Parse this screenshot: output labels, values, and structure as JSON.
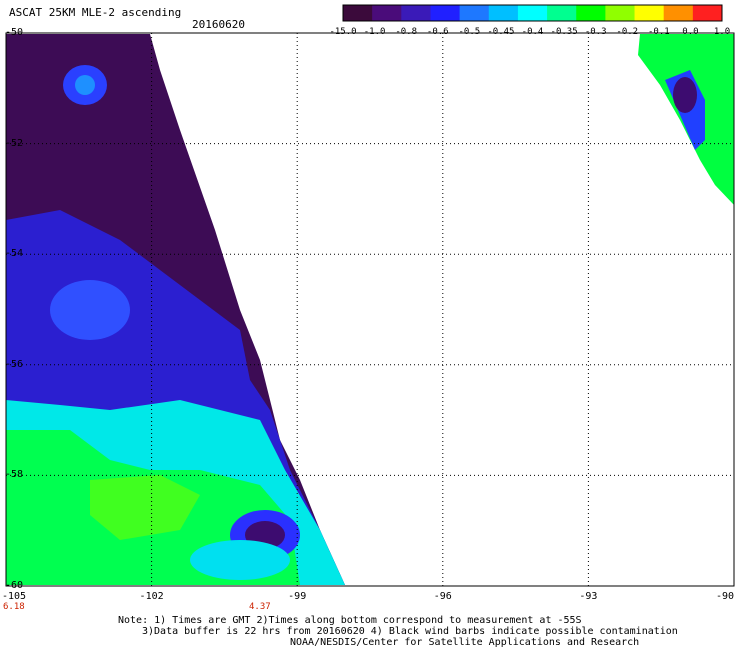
{
  "header": {
    "title": "ASCAT 25KM MLE-2 ascending",
    "date": "20160620"
  },
  "colorbar": {
    "labels": [
      "-15.0",
      "-1.0",
      "-0.8",
      "-0.6",
      "-0.5",
      "-0.45",
      "-0.4",
      "-0.35",
      "-0.3",
      "-0.2",
      "-0.1",
      "0.0",
      "1.0"
    ],
    "colors": [
      "#3b0a3b",
      "#4a0c7a",
      "#3a1ab8",
      "#2020ff",
      "#1e78ff",
      "#00bfff",
      "#00ffff",
      "#00ff90",
      "#00ff00",
      "#90ff00",
      "#ffff00",
      "#ff9000",
      "#ff2020"
    ]
  },
  "map": {
    "x_ticks": [
      "-105",
      "-102",
      "-99",
      "-96",
      "-93",
      "-90"
    ],
    "y_ticks": [
      "-50",
      "-52",
      "-54",
      "-56",
      "-58",
      "-60"
    ],
    "lon_range": [
      -105,
      -90
    ],
    "lat_range": [
      -60,
      -50
    ],
    "grid": "dotted"
  },
  "time_labels": {
    "left": "6.18",
    "mid": "4.37"
  },
  "notes": [
    "Note: 1) Times are GMT 2)Times along bottom correspond to measurement at -55S",
    "3)Data buffer is 22 hrs from 20160620 4) Black wind barbs indicate possible contamination",
    "NOAA/NESDIS/Center for Satellite Applications and Research"
  ]
}
